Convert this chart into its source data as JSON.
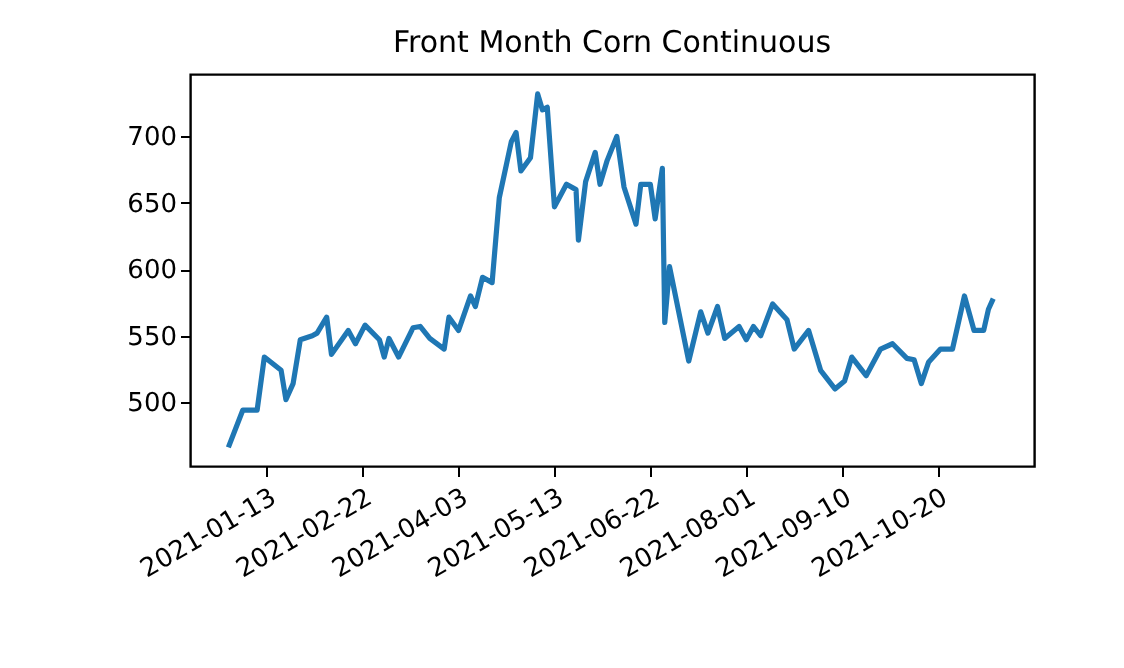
{
  "chart_data": {
    "type": "line",
    "title": "Front Month Corn Continuous",
    "x": [
      "2020-12-28",
      "2021-01-03",
      "2021-01-09",
      "2021-01-12",
      "2021-01-19",
      "2021-01-21",
      "2021-01-24",
      "2021-01-27",
      "2021-02-01",
      "2021-02-03",
      "2021-02-07",
      "2021-02-09",
      "2021-02-16",
      "2021-02-19",
      "2021-02-23",
      "2021-03-01",
      "2021-03-03",
      "2021-03-05",
      "2021-03-09",
      "2021-03-15",
      "2021-03-18",
      "2021-03-22",
      "2021-03-28",
      "2021-03-30",
      "2021-04-03",
      "2021-04-08",
      "2021-04-10",
      "2021-04-13",
      "2021-04-17",
      "2021-04-20",
      "2021-04-25",
      "2021-04-27",
      "2021-04-29",
      "2021-05-03",
      "2021-05-06",
      "2021-05-08",
      "2021-05-10",
      "2021-05-13",
      "2021-05-18",
      "2021-05-22",
      "2021-05-23",
      "2021-05-26",
      "2021-05-30",
      "2021-06-01",
      "2021-06-04",
      "2021-06-08",
      "2021-06-11",
      "2021-06-16",
      "2021-06-18",
      "2021-06-22",
      "2021-06-24",
      "2021-06-27",
      "2021-06-28",
      "2021-06-30",
      "2021-07-08",
      "2021-07-13",
      "2021-07-16",
      "2021-07-20",
      "2021-07-23",
      "2021-07-29",
      "2021-08-01",
      "2021-08-04",
      "2021-08-07",
      "2021-08-12",
      "2021-08-18",
      "2021-08-21",
      "2021-08-27",
      "2021-09-01",
      "2021-09-07",
      "2021-09-11",
      "2021-09-14",
      "2021-09-20",
      "2021-09-26",
      "2021-10-01",
      "2021-10-07",
      "2021-10-10",
      "2021-10-13",
      "2021-10-16",
      "2021-10-21",
      "2021-10-26",
      "2021-10-31",
      "2021-11-04",
      "2021-11-08",
      "2021-11-10",
      "2021-11-12"
    ],
    "series": [
      {
        "color": "#1f77b4",
        "values": [
          466,
          494,
          494,
          534,
          524,
          502,
          514,
          547,
          550,
          552,
          564,
          536,
          554,
          544,
          558,
          547,
          534,
          548,
          534,
          556,
          557,
          548,
          540,
          564,
          554,
          580,
          572,
          594,
          590,
          654,
          696,
          703,
          674,
          684,
          732,
          720,
          722,
          647,
          664,
          660,
          622,
          666,
          688,
          664,
          682,
          700,
          662,
          634,
          664,
          664,
          638,
          676,
          560,
          602,
          531,
          568,
          552,
          572,
          548,
          557,
          547,
          557,
          550,
          574,
          562,
          540,
          554,
          524,
          510,
          516,
          534,
          520,
          540,
          544,
          533,
          532,
          514,
          530,
          540,
          540,
          580,
          554,
          554,
          570,
          578
        ]
      }
    ],
    "xlim": [
      "2020-12-12",
      "2021-11-29"
    ],
    "xticks": [
      "2021-01-13",
      "2021-02-22",
      "2021-04-03",
      "2021-05-13",
      "2021-06-22",
      "2021-08-01",
      "2021-09-10",
      "2021-10-20"
    ],
    "ylim": [
      452,
      747
    ],
    "yticks": [
      500,
      550,
      600,
      650,
      700
    ],
    "grid": false
  }
}
